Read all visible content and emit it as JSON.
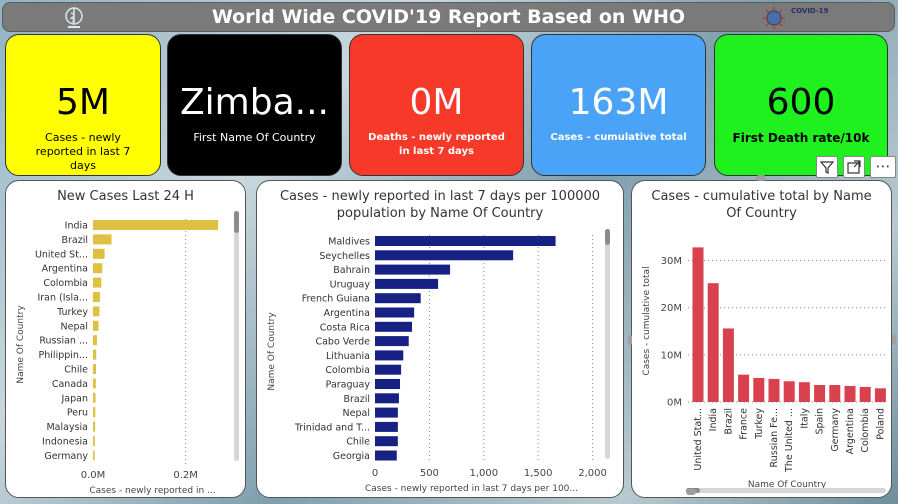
{
  "header": {
    "title": "World Wide COVID'19 Report Based on WHO",
    "covid_logo_text": "COVID-19"
  },
  "cards": [
    {
      "value": "5M",
      "label": "Cases - newly reported in last 7 days",
      "bg": "#ffff00",
      "fg": "#000000"
    },
    {
      "value": "Zimba...",
      "label": "First Name Of Country",
      "bg": "#000000",
      "fg": "#ffffff"
    },
    {
      "value": "0M",
      "label": "Deaths - newly reported in last 7 days",
      "bg": "#f7392a",
      "fg": "#ffffff"
    },
    {
      "value": "163M",
      "label": "Cases - cumulative total",
      "bg": "#4aa3f7",
      "fg": "#ffffff"
    },
    {
      "value": "600",
      "label": "First Death rate/10k",
      "bg": "#1ef11e",
      "fg": "#000000"
    }
  ],
  "toolbar": {
    "filter_icon": "filter-icon",
    "focus_icon": "focus-mode-icon",
    "more_label": "⋯"
  },
  "chart_data": [
    {
      "type": "bar",
      "orientation": "horizontal",
      "title": "New Cases Last 24 H",
      "xlabel": "Cases - newly reported in ...",
      "ylabel": "Name Of Country",
      "color": "#e0c040",
      "categories": [
        "India",
        "Brazil",
        "United St...",
        "Argentina",
        "Colombia",
        "Iran (Isla...",
        "Turkey",
        "Nepal",
        "Russian ...",
        "Philippin...",
        "Chile",
        "Canada",
        "Japan",
        "Peru",
        "Malaysia",
        "Indonesia",
        "Germany"
      ],
      "values": [
        270000,
        40000,
        25000,
        20000,
        18000,
        15000,
        14000,
        12000,
        8500,
        7000,
        6500,
        6000,
        5500,
        5000,
        4500,
        4000,
        3500
      ],
      "xlim": [
        0,
        300000
      ],
      "xticks": [
        {
          "v": 0,
          "label": "0.0M"
        },
        {
          "v": 200000,
          "label": "0.2M"
        }
      ]
    },
    {
      "type": "bar",
      "orientation": "horizontal",
      "title": "Cases - newly reported in last 7 days per 100000 population by Name Of Country",
      "xlabel": "Cases - newly reported in last 7 days per 100...",
      "ylabel": "Name Of Country",
      "color": "#172083",
      "categories": [
        "Maldives",
        "Seychelles",
        "Bahrain",
        "Uruguay",
        "French Guiana",
        "Argentina",
        "Costa Rica",
        "Cabo Verde",
        "Lithuania",
        "Colombia",
        "Paraguay",
        "Brazil",
        "Nepal",
        "Trinidad and T...",
        "Chile",
        "Georgia"
      ],
      "values": [
        1660,
        1270,
        690,
        580,
        420,
        360,
        340,
        310,
        260,
        240,
        230,
        220,
        210,
        210,
        210,
        200
      ],
      "xlim": [
        0,
        2050
      ],
      "xticks": [
        {
          "v": 0,
          "label": "0"
        },
        {
          "v": 500,
          "label": "500"
        },
        {
          "v": 1000,
          "label": "1,000"
        },
        {
          "v": 1500,
          "label": "1,500"
        },
        {
          "v": 2000,
          "label": "2,000"
        }
      ]
    },
    {
      "type": "bar",
      "orientation": "vertical",
      "title": "Cases - cumulative total by Name Of Country",
      "xlabel": "Name Of Country",
      "ylabel": "Cases - cumulative total",
      "color": "#d8414d",
      "categories": [
        "United Stat...",
        "India",
        "Brazil",
        "France",
        "Turkey",
        "Russian Fe...",
        "The United ...",
        "Italy",
        "Spain",
        "Germany",
        "Argentina",
        "Colombia",
        "Poland"
      ],
      "values": [
        32800000,
        25200000,
        15600000,
        5800000,
        5100000,
        4900000,
        4400000,
        4200000,
        3600000,
        3600000,
        3400000,
        3200000,
        2900000
      ],
      "ylim": [
        0,
        35000000
      ],
      "yticks": [
        {
          "v": 0,
          "label": "0M"
        },
        {
          "v": 10000000,
          "label": "10M"
        },
        {
          "v": 20000000,
          "label": "20M"
        },
        {
          "v": 30000000,
          "label": "30M"
        }
      ]
    }
  ]
}
